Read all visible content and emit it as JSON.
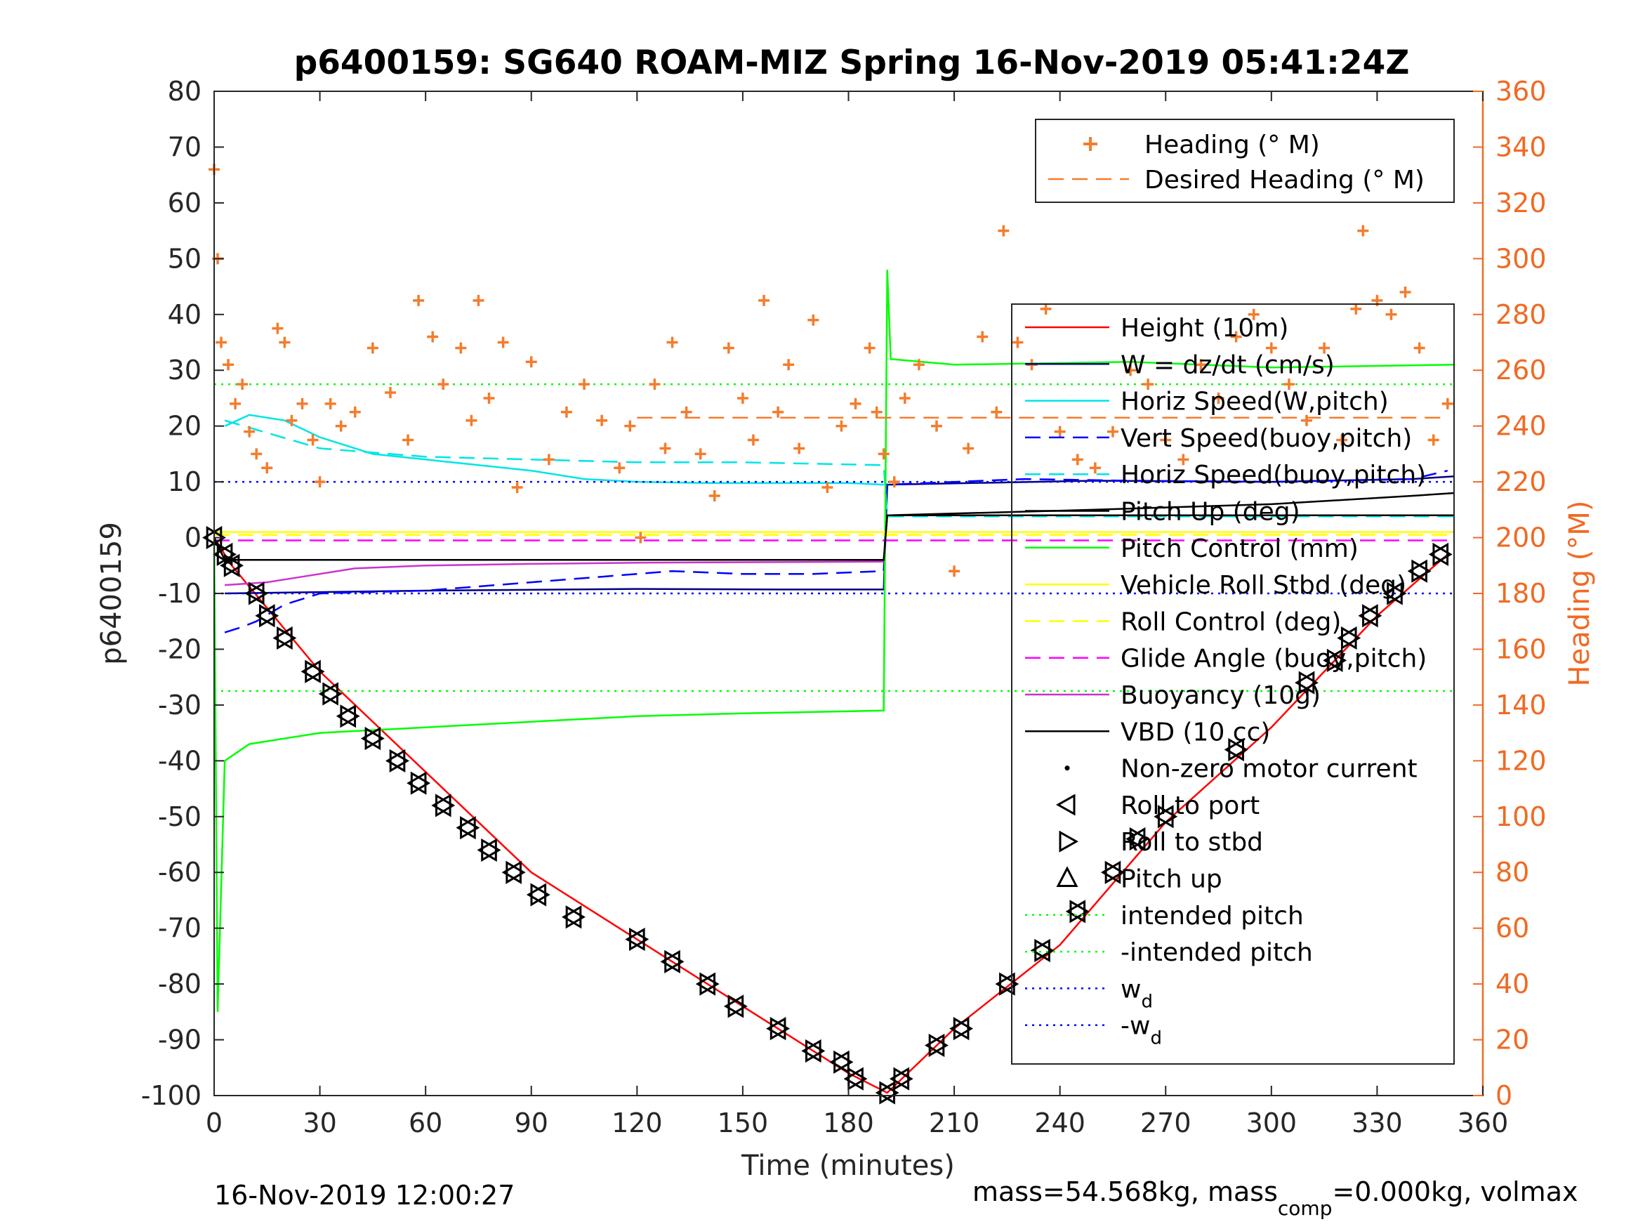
{
  "chart_data": {
    "type": "line",
    "title": "p6400159: SG640 ROAM-MIZ Spring 16-Nov-2019 05:41:24Z",
    "xlabel": "Time (minutes)",
    "ylabel": "p6400159",
    "y2label": "Heading (°M)",
    "xlim": [
      0,
      360
    ],
    "ylim": [
      -100,
      80
    ],
    "y2lim": [
      0,
      360
    ],
    "xticks": [
      "0",
      "30",
      "60",
      "90",
      "120",
      "150",
      "180",
      "210",
      "240",
      "270",
      "300",
      "330",
      "360"
    ],
    "yticks": [
      "80",
      "70",
      "60",
      "50",
      "40",
      "30",
      "20",
      "10",
      "0",
      "-10",
      "-20",
      "-30",
      "-40",
      "-50",
      "-60",
      "-70",
      "-80",
      "-90",
      "-100"
    ],
    "y2ticks": [
      "360",
      "340",
      "320",
      "300",
      "280",
      "260",
      "240",
      "220",
      "200",
      "180",
      "160",
      "140",
      "120",
      "100",
      "80",
      "60",
      "40",
      "20",
      "0"
    ],
    "footer_left": "16-Nov-2019 12:00:27",
    "footer_right": "mass=54.568kg, mass",
    "footer_right_sub": "comp",
    "footer_right_tail": "=0.000kg, volmax",
    "legend_heading": [
      {
        "label": "Heading (° M)",
        "color": "#f47c2c",
        "style": "plus"
      },
      {
        "label": "Desired Heading (° M)",
        "color": "#f47c2c",
        "style": "dash"
      }
    ],
    "legend_main": [
      {
        "label": "Height (10m)",
        "color": "#ff0000",
        "style": "solid"
      },
      {
        "label": "W = dz/dt (cm/s)",
        "color": "#000080",
        "style": "solid"
      },
      {
        "label": "Horiz Speed(W,pitch)",
        "color": "#00e5e5",
        "style": "solid"
      },
      {
        "label": "Vert Speed(buoy,pitch)",
        "color": "#0000ff",
        "style": "dash"
      },
      {
        "label": "Horiz Speed(buoy,pitch)",
        "color": "#00e5e5",
        "style": "dash"
      },
      {
        "label": "Pitch Up (deg)",
        "color": "#000000",
        "style": "solid"
      },
      {
        "label": "Pitch Control (mm)",
        "color": "#00ff00",
        "style": "solid"
      },
      {
        "label": "Vehicle Roll Stbd (deg)",
        "color": "#ffff00",
        "style": "solid"
      },
      {
        "label": "Roll Control (deg)",
        "color": "#ffff00",
        "style": "dash"
      },
      {
        "label": "Glide Angle (buoy,pitch)",
        "color": "#ff00ff",
        "style": "dash"
      },
      {
        "label": "Buoyancy (10g)",
        "color": "#cc33cc",
        "style": "solid"
      },
      {
        "label": "VBD (10 cc)",
        "color": "#000000",
        "style": "solid"
      },
      {
        "label": "Non-zero motor current",
        "color": "#000000",
        "style": "dot"
      },
      {
        "label": "Roll to port",
        "color": "#000000",
        "style": "tri-left"
      },
      {
        "label": "Roll to stbd",
        "color": "#000000",
        "style": "tri-right"
      },
      {
        "label": "Pitch up",
        "color": "#000000",
        "style": "tri-up"
      },
      {
        "label": "intended pitch",
        "color": "#00ff00",
        "style": "dotted"
      },
      {
        "label": "-intended pitch",
        "color": "#00ff00",
        "style": "dotted"
      },
      {
        "label": "w",
        "sub": "d",
        "color": "#0000ff",
        "style": "dotted"
      },
      {
        "label": "-w",
        "sub": "d",
        "color": "#0000ff",
        "style": "dotted"
      }
    ],
    "series": [
      {
        "name": "Height (10m)",
        "color": "#ff0000",
        "axis": "left",
        "x": [
          0,
          5,
          30,
          60,
          90,
          120,
          150,
          180,
          191,
          210,
          240,
          270,
          300,
          330,
          350
        ],
        "y": [
          0,
          -5,
          -24,
          -42,
          -60,
          -72,
          -84,
          -96,
          -99.5,
          -88,
          -73,
          -51,
          -34,
          -14,
          -3
        ]
      },
      {
        "name": "W = dz/dt (cm/s)",
        "color": "#000080",
        "axis": "left",
        "x": [
          3,
          60,
          120,
          160,
          190,
          191,
          250,
          300,
          340,
          352
        ],
        "y": [
          -10,
          -9.5,
          -9.2,
          -9.3,
          -9.3,
          9.5,
          10.2,
          10,
          10.5,
          11
        ]
      },
      {
        "name": "Horiz Speed(W,pitch)",
        "color": "#00e5e5",
        "axis": "left",
        "x": [
          3,
          10,
          20,
          30,
          45,
          60,
          75,
          90,
          105,
          120,
          140,
          160,
          180,
          190
        ],
        "y": [
          20,
          22,
          21,
          18,
          15,
          14,
          13,
          12,
          10.5,
          10,
          9.8,
          9.8,
          9.8,
          9.5
        ]
      },
      {
        "name": "Vert Speed(buoy,pitch)",
        "color": "#0000ff",
        "axis": "left",
        "x": [
          3,
          8,
          12,
          20,
          30,
          60,
          90,
          110,
          130,
          150,
          170,
          190,
          191,
          230,
          260,
          300,
          340,
          350
        ],
        "y": [
          -17,
          -16,
          -15,
          -12,
          -10,
          -9.5,
          -8,
          -7,
          -6,
          -6.5,
          -6.5,
          -6,
          9.5,
          10.5,
          10.2,
          10,
          10.5,
          12
        ]
      },
      {
        "name": "Horiz Speed(buoy,pitch)",
        "color": "#00e5e5",
        "axis": "left",
        "x": [
          3,
          30,
          60,
          90,
          120,
          150,
          190,
          191,
          250,
          300,
          352
        ],
        "y": [
          21,
          16,
          14.5,
          14,
          13.5,
          13.5,
          13,
          3.8,
          3.8,
          3.8,
          3.8
        ]
      },
      {
        "name": "Pitch Up (deg)",
        "color": "#000000",
        "axis": "left",
        "x": [
          0,
          3,
          190,
          191,
          250,
          300,
          340,
          352
        ],
        "y": [
          0,
          -4,
          -4,
          4,
          5,
          6,
          7.5,
          8
        ]
      },
      {
        "name": "Pitch Control (mm)",
        "color": "#00ff00",
        "axis": "left",
        "x": [
          0,
          1,
          3,
          10,
          30,
          60,
          90,
          120,
          150,
          190,
          191,
          192,
          210,
          260,
          300,
          352
        ],
        "y": [
          0,
          -85,
          -40,
          -37,
          -35,
          -34,
          -33,
          -32,
          -31.5,
          -31,
          48,
          32,
          31,
          31.5,
          30.5,
          31
        ]
      },
      {
        "name": "Vehicle Roll Stbd (deg)",
        "color": "#ffff00",
        "axis": "left",
        "x": [
          0,
          352
        ],
        "y": [
          1,
          1
        ]
      },
      {
        "name": "Roll Control (deg)",
        "color": "#ffff00",
        "axis": "left",
        "x": [
          0,
          352
        ],
        "y": [
          0.5,
          0.5
        ]
      },
      {
        "name": "Glide Angle (buoy,pitch)",
        "color": "#ff00ff",
        "axis": "left",
        "x": [
          0,
          191,
          352
        ],
        "y": [
          -0.5,
          -0.5,
          -0.5
        ]
      },
      {
        "name": "Buoyancy (10g)",
        "color": "#cc33cc",
        "axis": "left",
        "x": [
          3,
          15,
          25,
          40,
          60,
          90,
          120,
          190
        ],
        "y": [
          -8.5,
          -8,
          -7,
          -5.5,
          -5,
          -4.7,
          -4.5,
          -4.3
        ]
      },
      {
        "name": "VBD (10 cc)",
        "color": "#000000",
        "axis": "left",
        "x": [
          0,
          3,
          190,
          191,
          352
        ],
        "y": [
          0,
          -4,
          -4,
          4,
          4
        ]
      },
      {
        "name": "Desired Heading (° M)",
        "color": "#f47c2c",
        "axis": "right",
        "x": [
          120,
          350
        ],
        "y": [
          243,
          243
        ]
      },
      {
        "name": "intended pitch",
        "color": "#00ff00",
        "axis": "left",
        "x": [
          0,
          352
        ],
        "y": [
          27.5,
          27.5
        ]
      },
      {
        "name": "-intended pitch",
        "color": "#00ff00",
        "axis": "left",
        "x": [
          0,
          352
        ],
        "y": [
          -27.5,
          -27.5
        ]
      },
      {
        "name": "w_d",
        "color": "#0000ff",
        "axis": "left",
        "x": [
          0,
          352
        ],
        "y": [
          10,
          10
        ]
      },
      {
        "name": "-w_d",
        "color": "#0000ff",
        "axis": "left",
        "x": [
          0,
          352
        ],
        "y": [
          -10,
          -10
        ]
      }
    ],
    "heading_points": {
      "x": [
        0,
        1,
        2,
        4,
        6,
        8,
        10,
        12,
        15,
        18,
        20,
        22,
        25,
        28,
        30,
        33,
        36,
        40,
        45,
        50,
        55,
        58,
        62,
        65,
        70,
        73,
        75,
        78,
        82,
        86,
        90,
        95,
        100,
        105,
        110,
        115,
        118,
        121,
        125,
        128,
        130,
        134,
        138,
        142,
        146,
        150,
        153,
        156,
        160,
        163,
        166,
        170,
        174,
        178,
        182,
        186,
        188,
        190,
        193,
        196,
        200,
        205,
        210,
        214,
        218,
        222,
        224,
        228,
        232,
        236,
        240,
        245,
        250,
        255,
        260,
        265,
        270,
        275,
        280,
        285,
        290,
        295,
        300,
        305,
        310,
        315,
        320,
        324,
        326,
        330,
        334,
        338,
        342,
        346,
        350
      ],
      "y": [
        332,
        300,
        270,
        262,
        248,
        255,
        238,
        230,
        225,
        275,
        270,
        242,
        248,
        235,
        220,
        248,
        240,
        245,
        268,
        252,
        235,
        285,
        272,
        255,
        268,
        242,
        285,
        250,
        270,
        218,
        263,
        228,
        245,
        255,
        242,
        225,
        240,
        200,
        255,
        232,
        270,
        245,
        230,
        215,
        268,
        250,
        235,
        285,
        245,
        262,
        232,
        278,
        218,
        240,
        248,
        268,
        245,
        230,
        220,
        250,
        262,
        240,
        188,
        232,
        272,
        245,
        310,
        270,
        262,
        282,
        238,
        228,
        225,
        238,
        260,
        255,
        235,
        228,
        262,
        250,
        272,
        280,
        268,
        255,
        242,
        268,
        235,
        282,
        310,
        285,
        280,
        288,
        268,
        235,
        248
      ]
    },
    "marker_points": {
      "x": [
        0,
        3,
        5,
        12,
        15,
        20,
        28,
        33,
        38,
        45,
        52,
        58,
        65,
        72,
        78,
        85,
        92,
        102,
        120,
        130,
        140,
        148,
        160,
        170,
        178,
        182,
        191,
        195,
        205,
        212,
        225,
        235,
        245,
        255,
        262,
        270,
        290,
        310,
        318,
        322,
        328,
        335,
        342,
        348
      ],
      "y": [
        0,
        -3,
        -5,
        -10,
        -14,
        -18,
        -24,
        -28,
        -32,
        -36,
        -40,
        -44,
        -48,
        -52,
        -56,
        -60,
        -64,
        -68,
        -72,
        -76,
        -80,
        -84,
        -88,
        -92,
        -94,
        -97,
        -99.5,
        -97,
        -91,
        -88,
        -80,
        -74,
        -67,
        -60,
        -54,
        -50,
        -38,
        -26,
        -22,
        -18,
        -14,
        -10,
        -6,
        -3
      ]
    }
  }
}
